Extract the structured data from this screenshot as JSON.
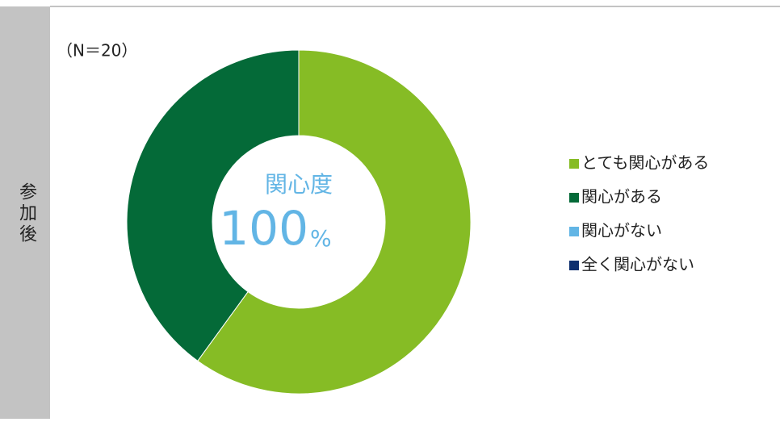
{
  "side_label": "参加後",
  "chart_data": {
    "type": "donut",
    "title": "（N＝20）",
    "center_label": "関心度",
    "center_value": "100",
    "center_unit": "%",
    "categories": [
      "とても関心がある",
      "関心がある",
      "関心がない",
      "全く関心がない"
    ],
    "values": [
      60,
      40,
      0,
      0
    ],
    "colors": [
      "#86bc25",
      "#046a38",
      "#62b5e5",
      "#0d2e6e"
    ],
    "legend": "right"
  }
}
